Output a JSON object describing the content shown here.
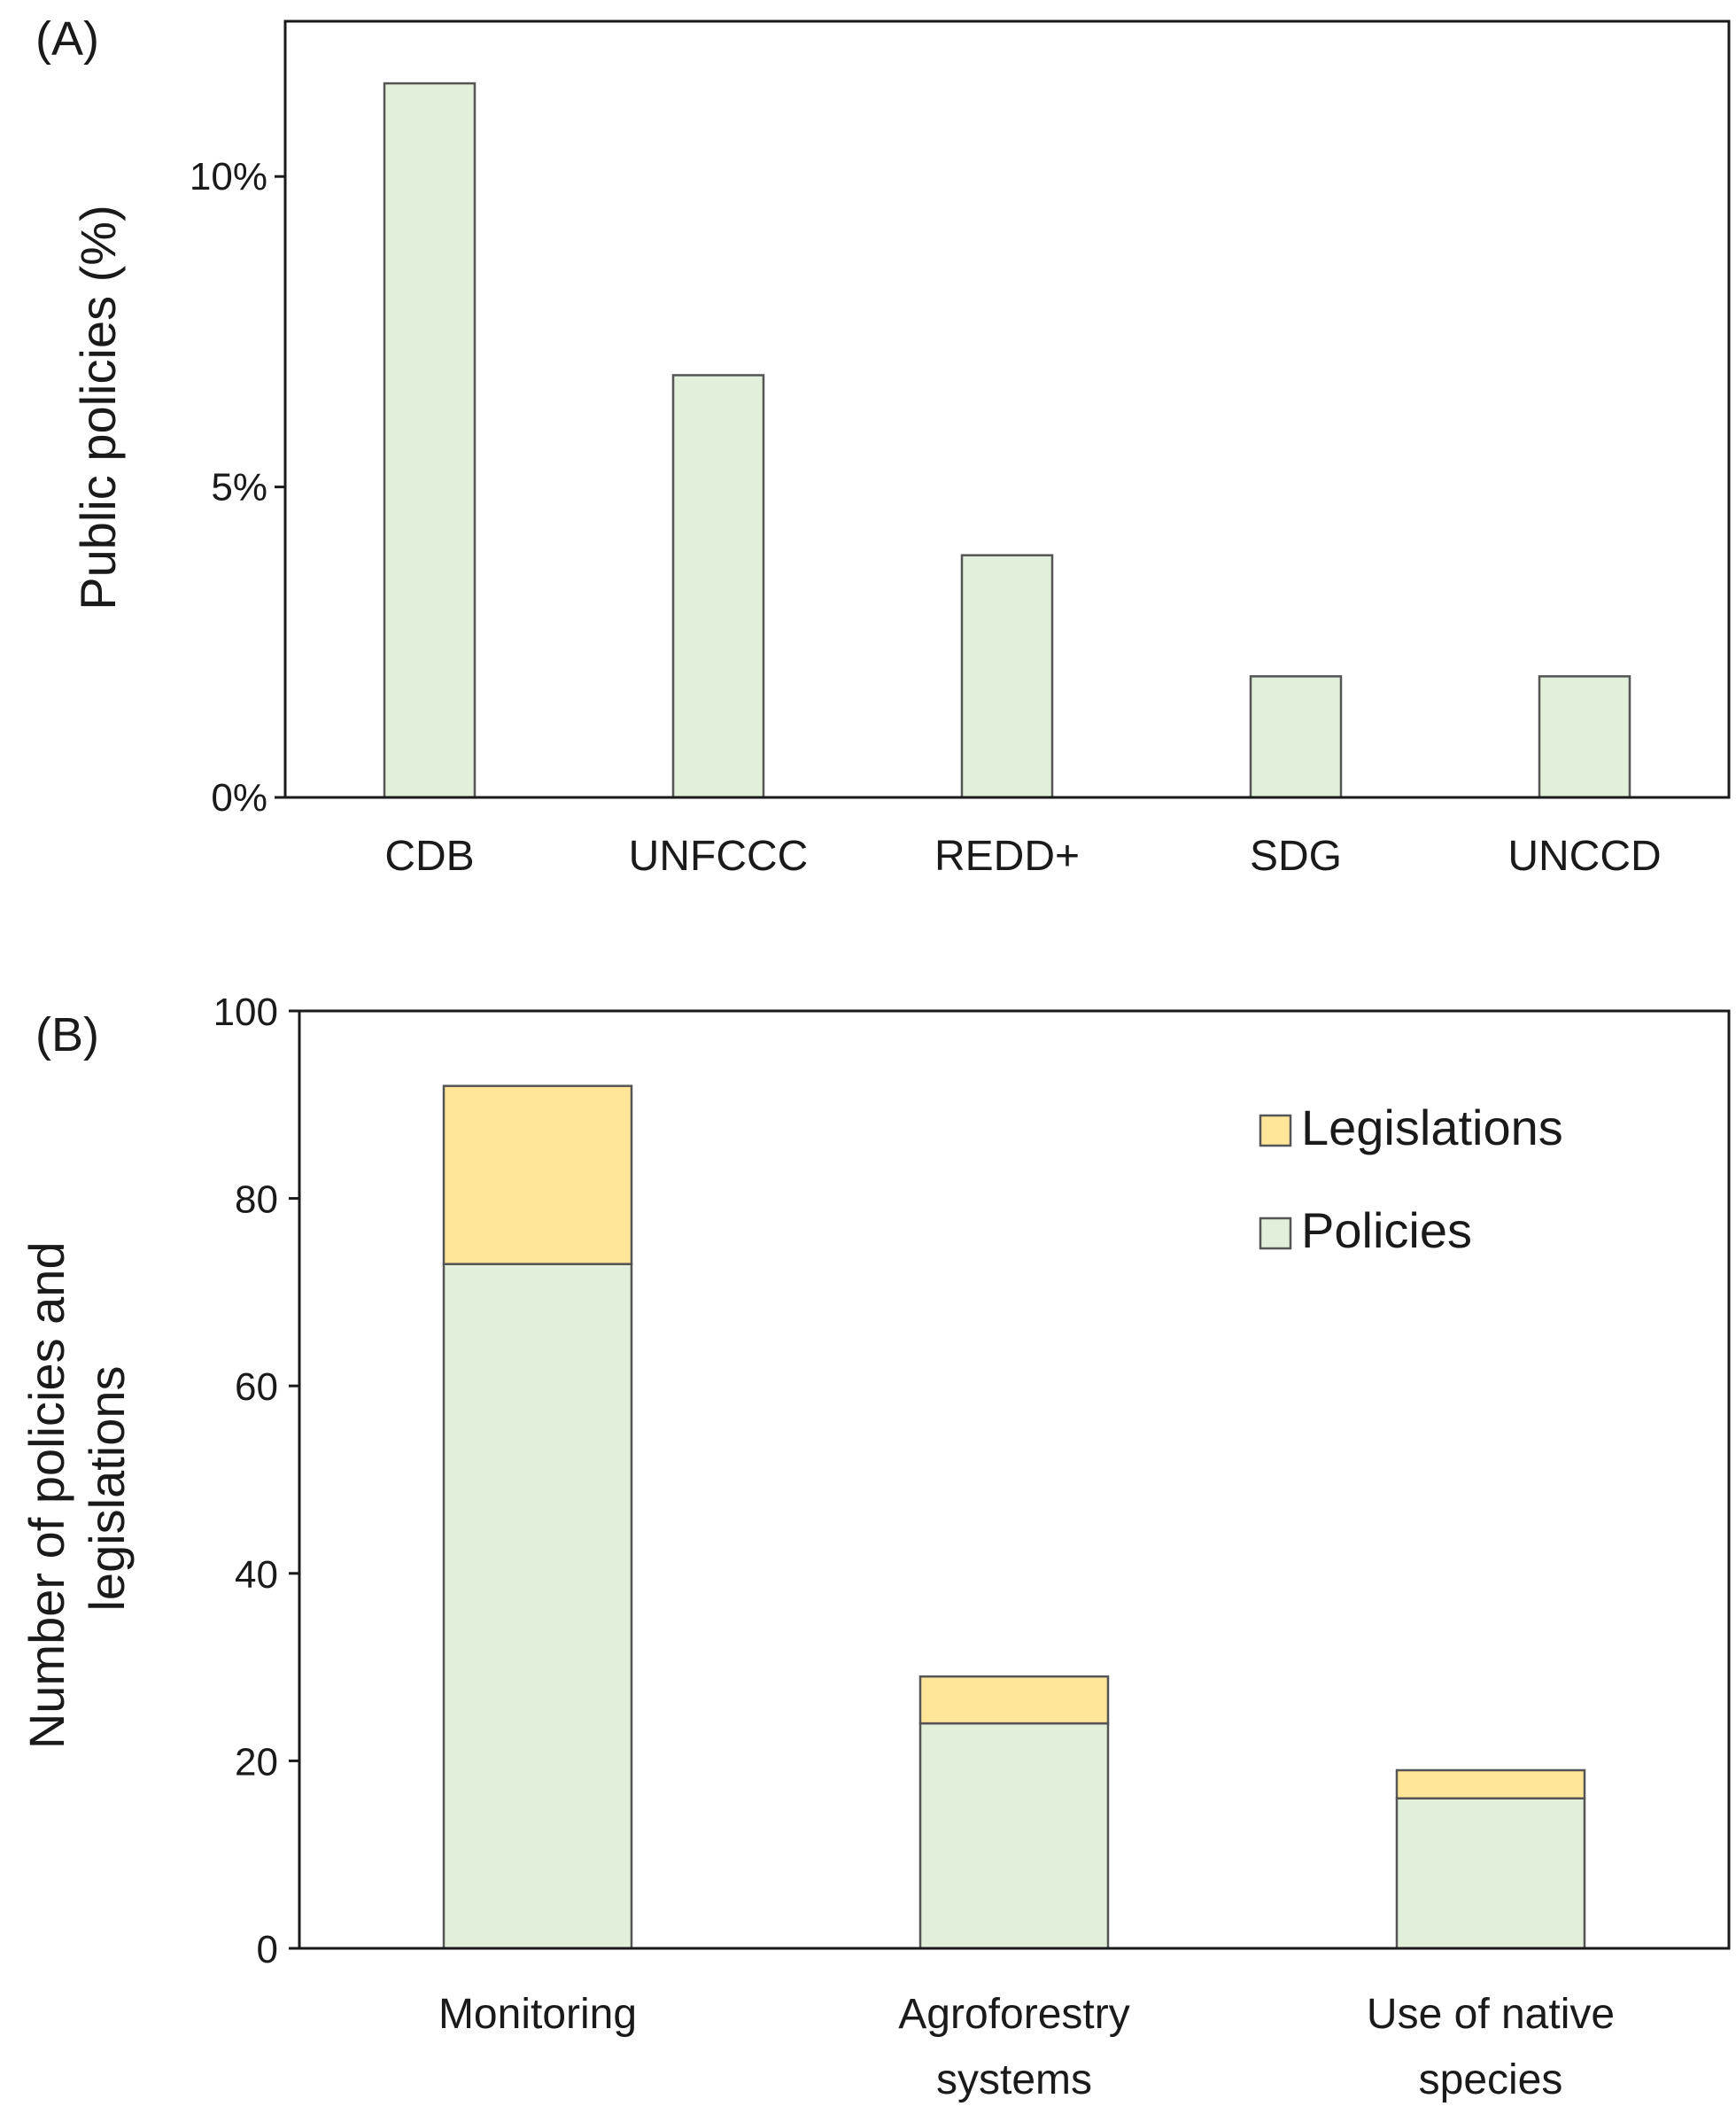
{
  "chart_data": [
    {
      "panel_label": "(A)",
      "type": "bar",
      "categories": [
        "CDB",
        "UNFCCC",
        "REDD+",
        "SDG",
        "UNCCD"
      ],
      "values": [
        11.5,
        6.8,
        3.9,
        1.95,
        1.95
      ],
      "ylabel": "Public policies (%)",
      "ylim": [
        0,
        12.5
      ],
      "yticks": [
        0,
        5,
        10
      ],
      "ytick_labels": [
        "0%",
        "5%",
        "10%"
      ],
      "grid": false,
      "colors": {
        "bar": "#e2efda",
        "edge": "#555555"
      }
    },
    {
      "panel_label": "(B)",
      "type": "bar",
      "stacked": true,
      "categories": [
        [
          "Monitoring"
        ],
        [
          "Agroforestry",
          "systems"
        ],
        [
          "Use of native",
          "species"
        ]
      ],
      "series": [
        {
          "name": "Policies",
          "values": [
            73,
            24,
            16
          ],
          "color": "#e2efda"
        },
        {
          "name": "Legislations",
          "values": [
            19,
            5,
            3
          ],
          "color": "#ffe699"
        }
      ],
      "ylabel": [
        "Number of policies and",
        "legislations"
      ],
      "ylim": [
        0,
        100
      ],
      "yticks": [
        0,
        20,
        40,
        60,
        80,
        100
      ],
      "ytick_labels": [
        "0",
        "20",
        "40",
        "60",
        "80",
        "100"
      ],
      "legend": {
        "placement": "top-right",
        "order": [
          "Legislations",
          "Policies"
        ]
      },
      "grid": false,
      "colors": {
        "edge": "#555555"
      }
    }
  ]
}
